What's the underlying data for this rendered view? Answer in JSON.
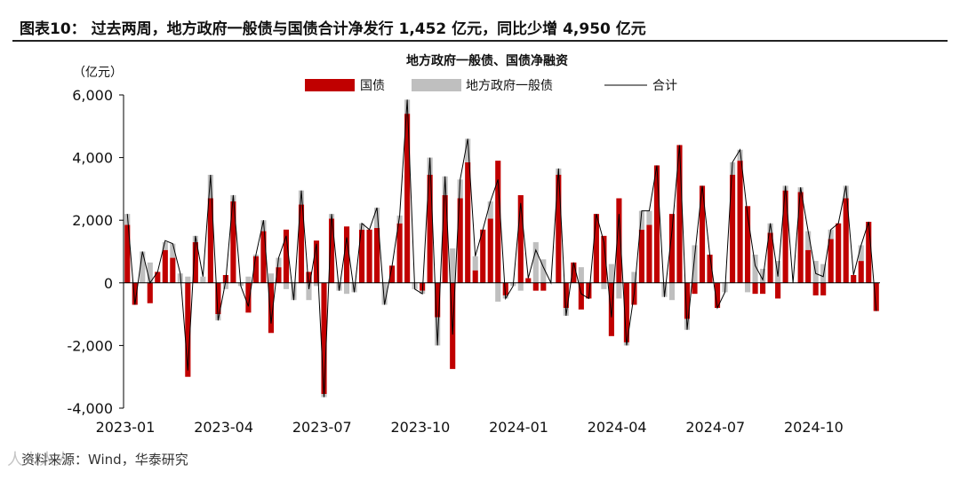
{
  "figure_title": "图表10：  过去两周，地方政府一般债与国债合计净发行 1,452 亿元，同比少增 4,950 亿元",
  "source_note": "资料来源：Wind，华泰研究",
  "watermark": "人人人人",
  "colors": {
    "treasury": "#c00000",
    "local": "#bfbfbf",
    "total": "#000000"
  },
  "chart_data": {
    "type": "bar",
    "title": "地方政府一般债、国债净融资",
    "unit_label": "（亿元）",
    "legend": [
      {
        "key": "treasury",
        "label": "国债",
        "kind": "bar"
      },
      {
        "key": "local",
        "label": "地方政府一般债",
        "kind": "bar"
      },
      {
        "key": "total",
        "label": "合计",
        "kind": "line"
      }
    ],
    "legend_position": "top",
    "ylim": [
      -4000,
      6000
    ],
    "yticks": [
      -4000,
      -2000,
      0,
      2000,
      4000,
      6000
    ],
    "ytick_labels": [
      "-4,000",
      "-2,000",
      "0",
      "2,000",
      "4,000",
      "6,000"
    ],
    "xtick_labels": [
      {
        "label": "2023-01",
        "index": 0
      },
      {
        "label": "2023-04",
        "index": 13
      },
      {
        "label": "2023-07",
        "index": 26
      },
      {
        "label": "2023-10",
        "index": 39
      },
      {
        "label": "2024-01",
        "index": 52
      },
      {
        "label": "2024-04",
        "index": 65
      },
      {
        "label": "2024-07",
        "index": 78
      },
      {
        "label": "2024-10",
        "index": 91
      }
    ],
    "grid": false,
    "series": [
      {
        "name": "国债",
        "values": [
          1850,
          -700,
          0,
          -650,
          350,
          1050,
          800,
          0,
          -3000,
          1300,
          0,
          2700,
          -1000,
          250,
          2600,
          0,
          -950,
          850,
          1650,
          -1600,
          500,
          1700,
          0,
          2500,
          350,
          1350,
          -3550,
          2050,
          0,
          1800,
          0,
          1700,
          1700,
          1750,
          0,
          550,
          1900,
          5400,
          0,
          -250,
          3450,
          -1100,
          2800,
          -2750,
          2700,
          3850,
          400,
          1700,
          2050,
          3900,
          -400,
          0,
          2800,
          150,
          -250,
          -250,
          0,
          3450,
          -800,
          650,
          -850,
          -500,
          2200,
          1500,
          -1700,
          2700,
          -1900,
          -700,
          1700,
          1850,
          3750,
          0,
          2200,
          4400,
          -1150,
          -350,
          3100,
          900,
          -800,
          0,
          3450,
          3900,
          2450,
          -350,
          -350,
          1600,
          -500,
          2950,
          0,
          2900,
          1050,
          -400,
          -400,
          1400,
          1900,
          2700,
          250,
          700,
          1950,
          -900
        ]
      },
      {
        "name": "地方政府一般债",
        "values": [
          350,
          0,
          1000,
          650,
          0,
          250,
          450,
          300,
          200,
          200,
          200,
          750,
          -200,
          -200,
          200,
          -100,
          200,
          50,
          350,
          300,
          300,
          -200,
          -550,
          450,
          -550,
          -100,
          -100,
          150,
          -250,
          -350,
          -300,
          200,
          0,
          650,
          -700,
          0,
          250,
          450,
          -200,
          -100,
          550,
          -900,
          600,
          1100,
          600,
          750,
          450,
          0,
          550,
          -600,
          -100,
          -100,
          -250,
          0,
          1300,
          750,
          0,
          200,
          -250,
          0,
          500,
          0,
          0,
          -200,
          600,
          -500,
          -100,
          350,
          600,
          450,
          0,
          -450,
          -550,
          0,
          -350,
          1200,
          0,
          0,
          0,
          -300,
          400,
          350,
          -300,
          900,
          450,
          300,
          700,
          150,
          0,
          150,
          600,
          700,
          600,
          300,
          0,
          400,
          0,
          500,
          0,
          0
        ]
      },
      {
        "name": "合计",
        "values": [
          2200,
          -700,
          1000,
          0,
          350,
          1350,
          1250,
          300,
          -2800,
          1500,
          200,
          3450,
          -1200,
          50,
          2800,
          -100,
          -750,
          900,
          2000,
          -1300,
          800,
          1500,
          -550,
          2950,
          -200,
          1250,
          -3650,
          2200,
          -250,
          1450,
          -300,
          1900,
          1700,
          2400,
          -700,
          550,
          2150,
          5850,
          -200,
          -350,
          4000,
          -2000,
          3400,
          -1650,
          3300,
          4600,
          850,
          1700,
          2600,
          3300,
          -500,
          -100,
          2550,
          150,
          1050,
          500,
          0,
          3650,
          -1050,
          650,
          -350,
          -500,
          2200,
          1300,
          -1100,
          2200,
          -2000,
          -350,
          2300,
          2300,
          3750,
          -450,
          1650,
          4400,
          -1500,
          850,
          3100,
          900,
          -800,
          -300,
          3850,
          4250,
          2150,
          550,
          100,
          1900,
          200,
          3100,
          0,
          3050,
          1650,
          300,
          200,
          1700,
          1900,
          3100,
          250,
          1200,
          1950,
          -900
        ]
      }
    ]
  }
}
